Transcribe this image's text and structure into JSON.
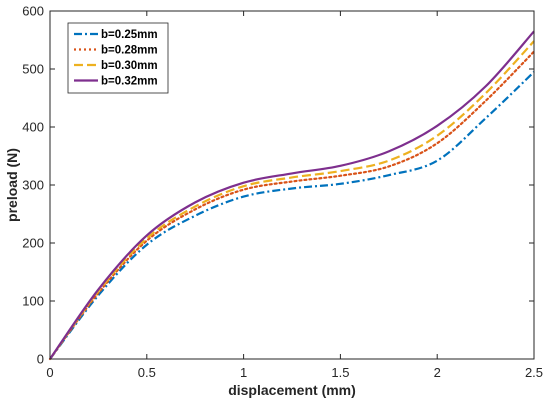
{
  "chart_data": {
    "type": "line",
    "title": "",
    "xlabel": "displacement (mm)",
    "ylabel": "preload (N)",
    "xlim": [
      0,
      2.5
    ],
    "ylim": [
      0,
      600
    ],
    "xticks": [
      0,
      0.5,
      1,
      1.5,
      2,
      2.5
    ],
    "xtick_labels": [
      "0",
      "0.5",
      "1",
      "1.5",
      "2",
      "2.5"
    ],
    "yticks": [
      0,
      100,
      200,
      300,
      400,
      500,
      600
    ],
    "ytick_labels": [
      "0",
      "100",
      "200",
      "300",
      "400",
      "500",
      "600"
    ],
    "grid": false,
    "legend_position": "top-left",
    "x": [
      0,
      0.25,
      0.5,
      0.75,
      1.0,
      1.25,
      1.5,
      1.75,
      2.0,
      2.25,
      2.5
    ],
    "series": [
      {
        "name": "b=0.25mm",
        "color": "#0072BD",
        "dash": "dashdot",
        "values": [
          0,
          110,
          197,
          247,
          280,
          294,
          302,
          317,
          342,
          415,
          495
        ]
      },
      {
        "name": "b=0.28mm",
        "color": "#D95319",
        "dash": "dotted",
        "values": [
          0,
          114,
          204,
          258,
          292,
          306,
          316,
          332,
          372,
          445,
          530
        ]
      },
      {
        "name": "b=0.30mm",
        "color": "#EDB120",
        "dash": "dashed",
        "values": [
          0,
          117,
          208,
          263,
          298,
          313,
          324,
          342,
          385,
          458,
          548
        ]
      },
      {
        "name": "b=0.32mm",
        "color": "#7E2F8E",
        "dash": "solid",
        "values": [
          0,
          120,
          213,
          270,
          304,
          320,
          333,
          358,
          402,
          470,
          565
        ]
      }
    ]
  }
}
